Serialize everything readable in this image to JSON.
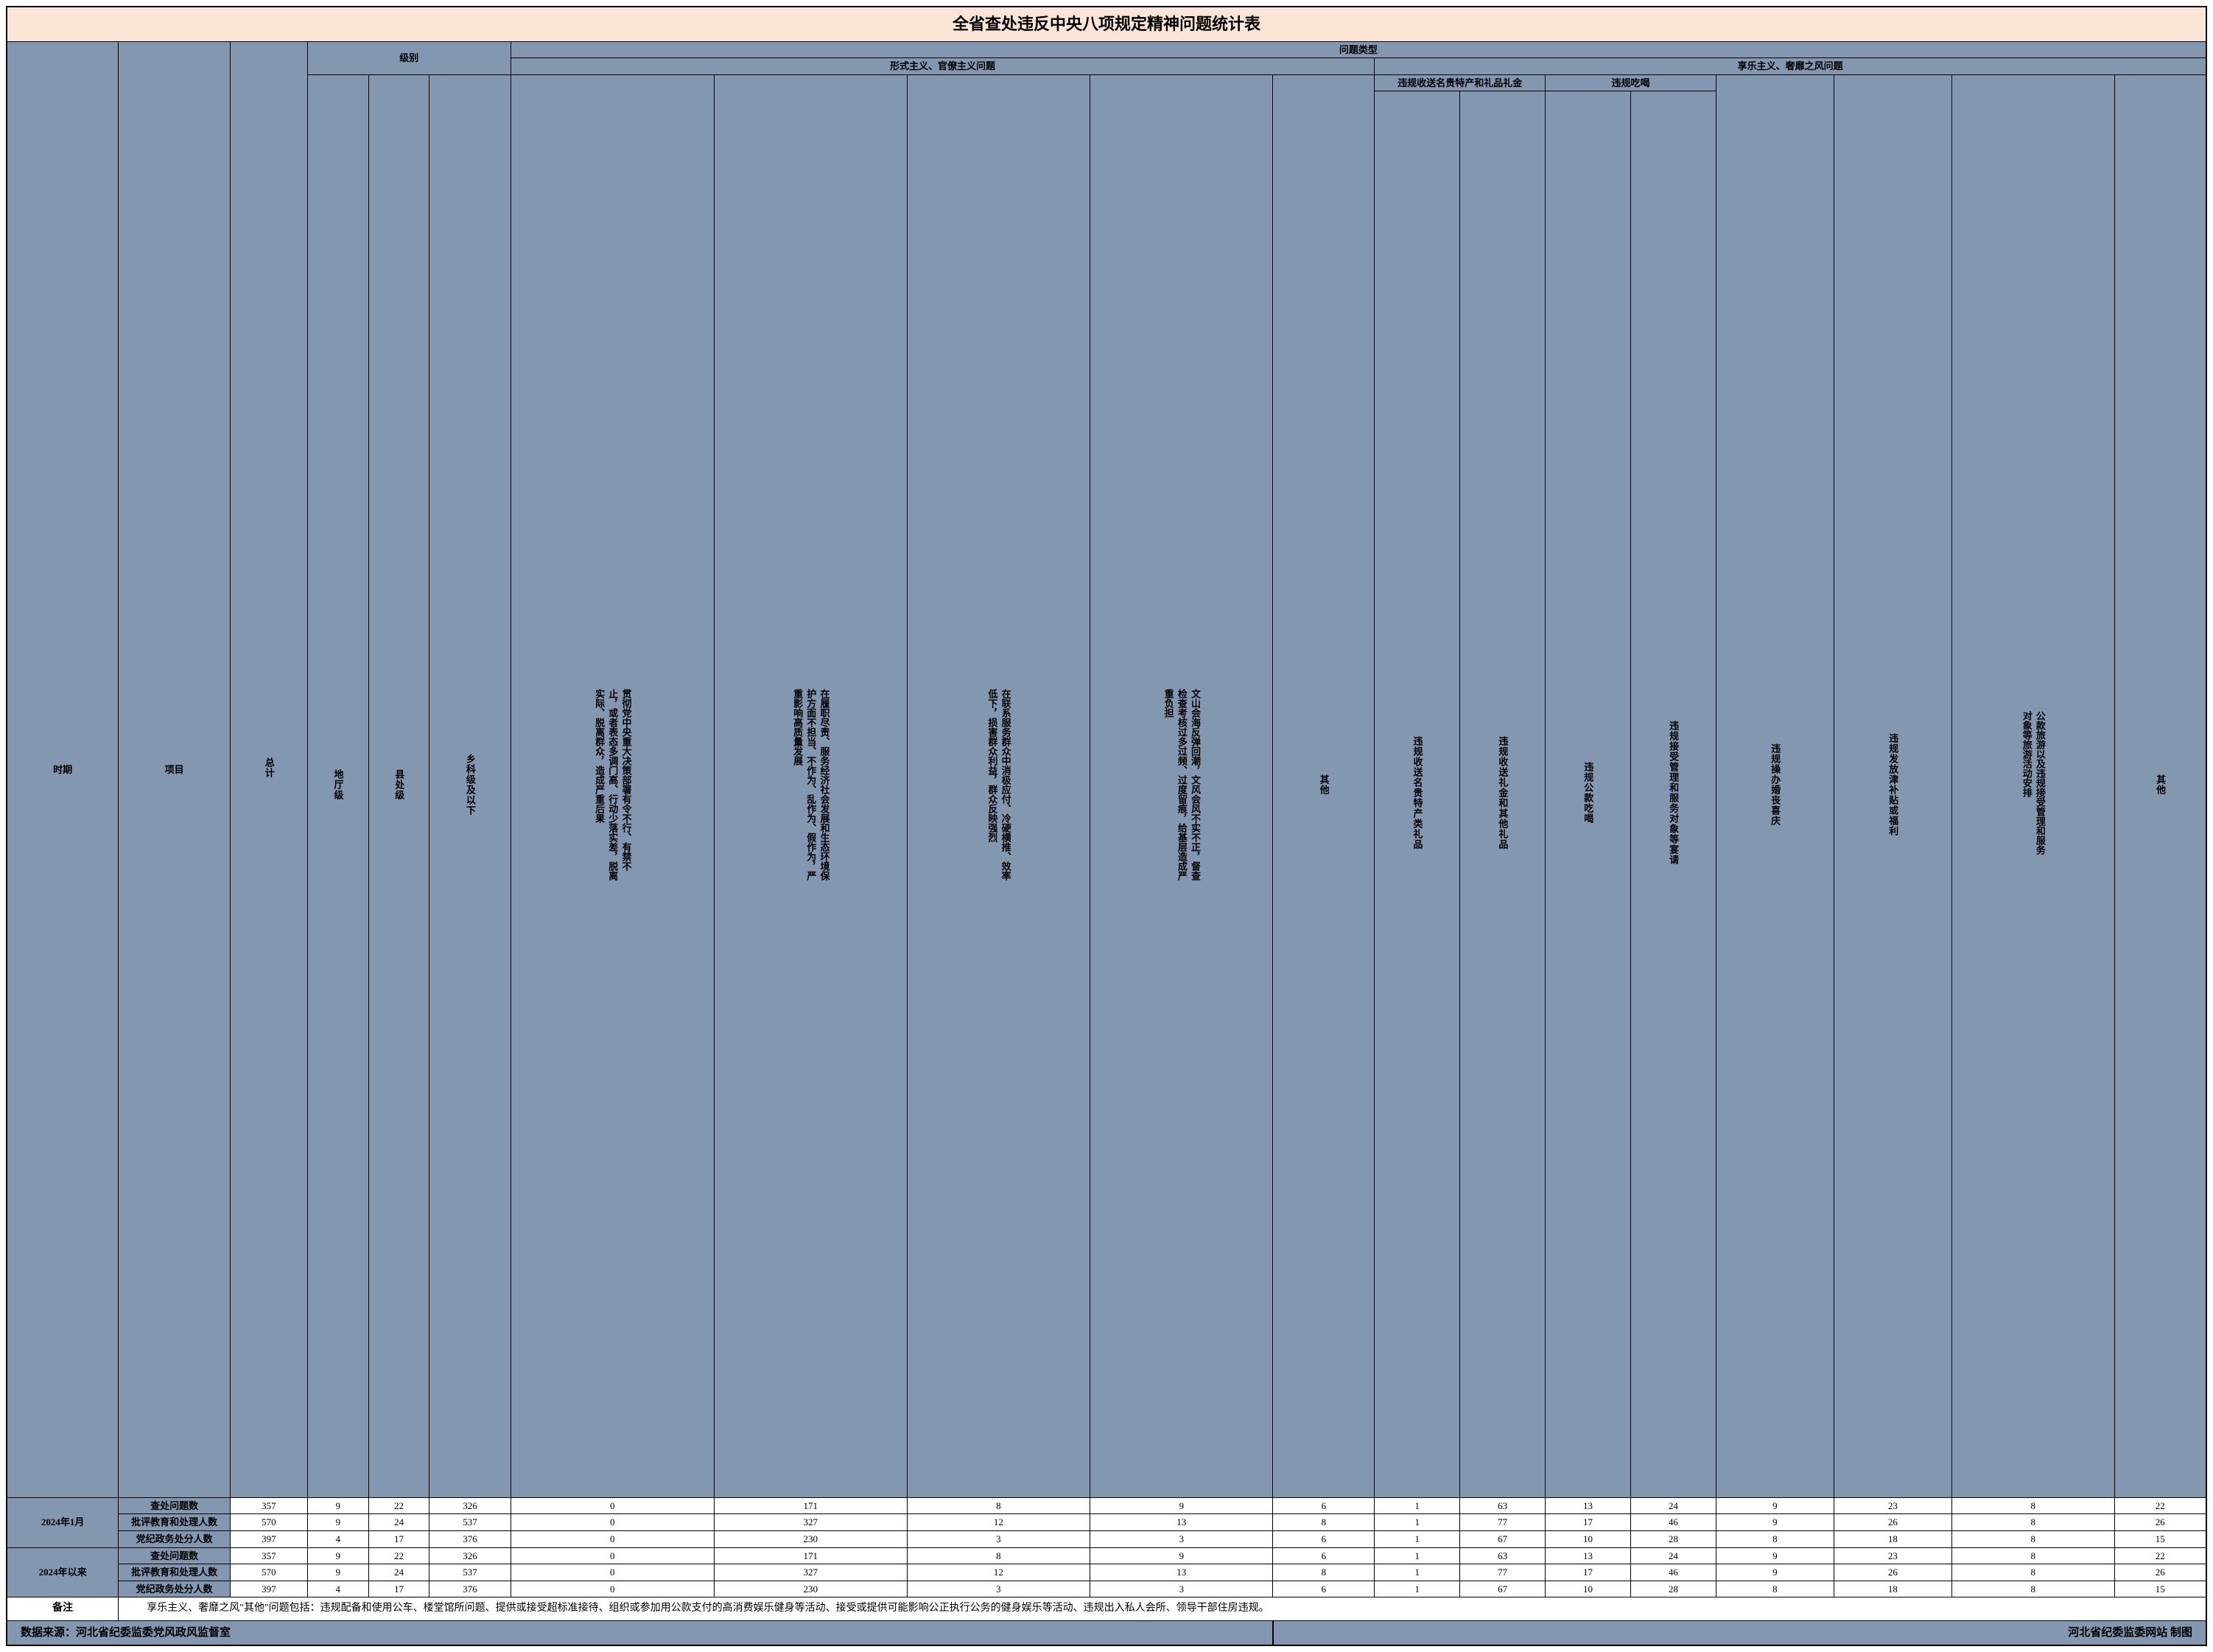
{
  "title": "全省查处违反中央八项规定精神问题统计表",
  "colors": {
    "title_bg": "#fbe5d6",
    "header_bg": "#8497b0",
    "border": "#000000",
    "data_bg": "#ffffff"
  },
  "headers": {
    "period": "时期",
    "item": "项目",
    "total": "总计",
    "level_group": "级别",
    "level_diting": "地厅级",
    "level_xianchu": "县处级",
    "level_xiangke": "乡科级及以下",
    "problem_group": "问题类型",
    "formalism_group": "形式主义、官僚主义问题",
    "hedonism_group": "享乐主义、奢靡之风问题",
    "col_a": "贯彻党中央重大决策部署有令不行、有禁不止，或者表态多调门高、行动少落实差，脱离实际、脱离群众，造成严重后果",
    "col_b": "在履职尽责、服务经济社会发展和生态环境保护方面不担当、不作为、乱作为、假作为，严重影响高质量发展",
    "col_c": "在联系服务群众中消极应付、冷硬横推、效率低下，损害群众利益，群众反映强烈",
    "col_d": "文山会海反弹回潮，文风会风不实不正，督查检查考核过多过频、过度留痕，给基层造成严重负担",
    "col_e": "其他",
    "gift_group": "违规收送名贵特产和礼品礼金",
    "gift_a": "违规收送名贵特产类礼品",
    "gift_b": "违规收送礼金和其他礼品",
    "eat_group": "违规吃喝",
    "eat_a": "违规公款吃喝",
    "eat_b": "违规接受管理和服务对象等宴请",
    "col_k": "违规操办婚丧喜庆",
    "col_l": "违规发放津补贴或福利",
    "col_m": "公款旅游以及违规接受管理和服务对象等旅游活动安排",
    "col_n": "其他"
  },
  "periods": [
    {
      "label": "2024年1月",
      "rows": [
        {
          "item": "查处问题数",
          "values": [
            "357",
            "9",
            "22",
            "326",
            "0",
            "171",
            "8",
            "9",
            "6",
            "1",
            "63",
            "13",
            "24",
            "9",
            "23",
            "8",
            "22"
          ]
        },
        {
          "item": "批评教育和处理人数",
          "values": [
            "570",
            "9",
            "24",
            "537",
            "0",
            "327",
            "12",
            "13",
            "8",
            "1",
            "77",
            "17",
            "46",
            "9",
            "26",
            "8",
            "26"
          ]
        },
        {
          "item": "党纪政务处分人数",
          "values": [
            "397",
            "4",
            "17",
            "376",
            "0",
            "230",
            "3",
            "3",
            "6",
            "1",
            "67",
            "10",
            "28",
            "8",
            "18",
            "8",
            "15"
          ]
        }
      ]
    },
    {
      "label": "2024年以来",
      "rows": [
        {
          "item": "查处问题数",
          "values": [
            "357",
            "9",
            "22",
            "326",
            "0",
            "171",
            "8",
            "9",
            "6",
            "1",
            "63",
            "13",
            "24",
            "9",
            "23",
            "8",
            "22"
          ]
        },
        {
          "item": "批评教育和处理人数",
          "values": [
            "570",
            "9",
            "24",
            "537",
            "0",
            "327",
            "12",
            "13",
            "8",
            "1",
            "77",
            "17",
            "46",
            "9",
            "26",
            "8",
            "26"
          ]
        },
        {
          "item": "党纪政务处分人数",
          "values": [
            "397",
            "4",
            "17",
            "376",
            "0",
            "230",
            "3",
            "3",
            "6",
            "1",
            "67",
            "10",
            "28",
            "8",
            "18",
            "8",
            "15"
          ]
        }
      ]
    }
  ],
  "note_label": "备注",
  "note_text": "享乐主义、奢靡之风\"其他\"问题包括：违规配备和使用公车、楼堂馆所问题、提供或接受超标准接待、组织或参加用公款支付的高消费娱乐健身等活动、接受或提供可能影响公正执行公务的健身娱乐等活动、违规出入私人会所、领导干部住房违规。",
  "footer_left": "数据来源：河北省纪委监委党风政风监督室",
  "footer_right": "河北省纪委监委网站  制图"
}
